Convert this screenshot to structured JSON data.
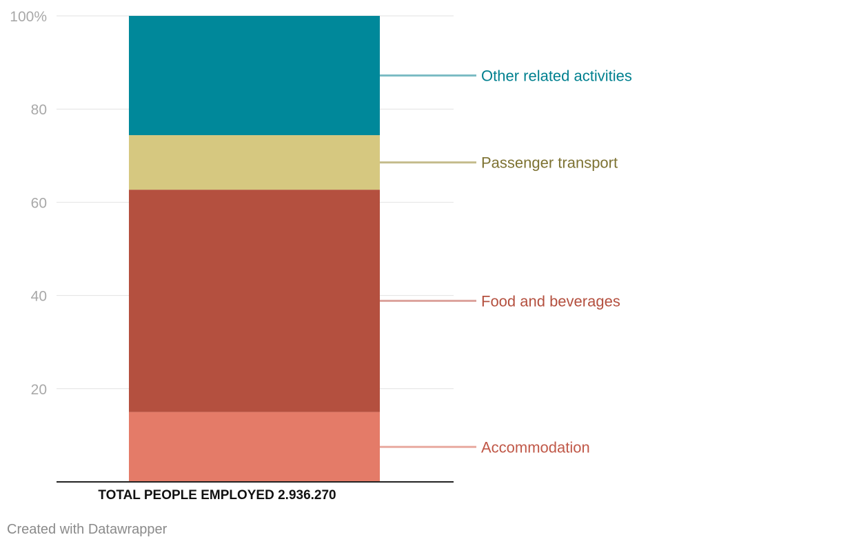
{
  "chart_data": {
    "type": "bar",
    "stacked": true,
    "orientation": "vertical",
    "title": "",
    "categories": [
      "TOTAL PEOPLE EMPLOYED 2.936.270"
    ],
    "series": [
      {
        "name": "Accommodation",
        "values": [
          15
        ],
        "color": "#e47b68",
        "label_color": "#c05848",
        "line_color": "#e8aaa0"
      },
      {
        "name": "Food and beverages",
        "values": [
          47.7
        ],
        "color": "#b4503f",
        "label_color": "#b4503f",
        "line_color": "#dca29c"
      },
      {
        "name": "Passenger transport",
        "values": [
          11.7
        ],
        "color": "#d6c880",
        "label_color": "#7d7232",
        "line_color": "#c4bc8c"
      },
      {
        "name": "Other related activities",
        "values": [
          25.6
        ],
        "color": "#00889a",
        "label_color": "#00808f",
        "line_color": "#7cbcc4"
      }
    ],
    "ylim": [
      0,
      100
    ],
    "y_ticks": [
      20,
      40,
      60,
      80,
      100
    ],
    "y_tick_labels": [
      "20",
      "40",
      "60",
      "80",
      "100%"
    ],
    "grid": true,
    "legend": "direct-labels-right"
  },
  "footer": {
    "credit": "Created with Datawrapper"
  }
}
